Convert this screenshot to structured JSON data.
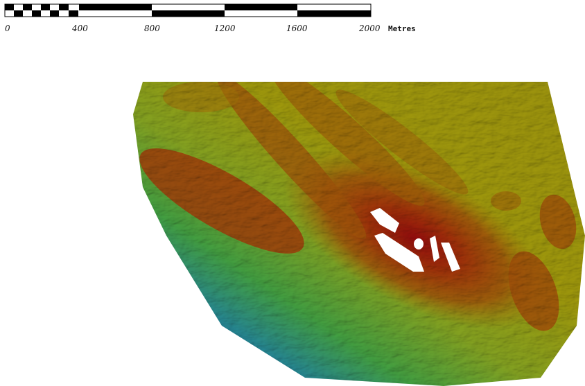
{
  "scale_bar": {
    "ticks": [
      "0",
      "400",
      "800",
      "1200",
      "1600",
      "2000"
    ],
    "unit": "Metres"
  },
  "map": {
    "type": "shaded-relief-elevation-model",
    "color_ramp": [
      "#0a1f8f",
      "#1f5fd0",
      "#33b8c6",
      "#5ad858",
      "#b3dc2c",
      "#d8cf10",
      "#d9a10c",
      "#d8700c",
      "#d9420c",
      "#c80f10"
    ],
    "features": [
      {
        "name": "no-data-hole",
        "fill": "#ffffff"
      }
    ]
  }
}
